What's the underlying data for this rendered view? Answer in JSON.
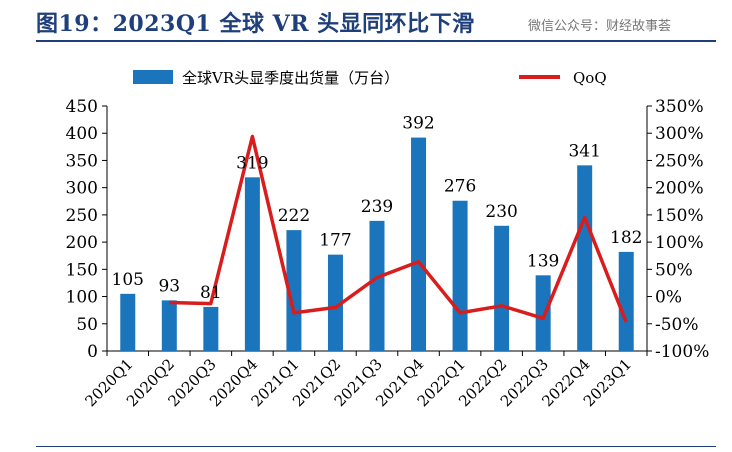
{
  "title": "图19：2023Q1 全球 VR 头显同环比下滑",
  "watermark": "微信公众号：财经故事荟",
  "colors": {
    "bar": "#1b75bc",
    "line": "#d91c1c",
    "title": "#1f3f7a"
  },
  "chart_data": {
    "type": "bar+line",
    "categories": [
      "2020Q1",
      "2020Q2",
      "2020Q3",
      "2020Q4",
      "2021Q1",
      "2021Q2",
      "2021Q3",
      "2021Q4",
      "2022Q1",
      "2022Q2",
      "2022Q3",
      "2022Q4",
      "2023Q1"
    ],
    "series": [
      {
        "name": "全球VR头显季度出货量（万台）",
        "type": "bar",
        "axis": "left",
        "values": [
          105,
          93,
          81,
          319,
          222,
          177,
          239,
          392,
          276,
          230,
          139,
          341,
          182
        ],
        "labels": [
          "105",
          "93",
          "81",
          "319",
          "222",
          "177",
          "239",
          "392",
          "276",
          "230",
          "139",
          "341",
          "182"
        ]
      },
      {
        "name": "QoQ",
        "type": "line",
        "axis": "right",
        "values": [
          null,
          -11,
          -13,
          294,
          -30,
          -20,
          35,
          64,
          -30,
          -17,
          -40,
          145,
          -47
        ]
      }
    ],
    "y_left": {
      "min": 0,
      "max": 450,
      "ticks": [
        "0",
        "50",
        "100",
        "150",
        "200",
        "250",
        "300",
        "350",
        "400",
        "450"
      ]
    },
    "y_right": {
      "min": -100,
      "max": 350,
      "ticks": [
        "-100%",
        "-50%",
        "0%",
        "50%",
        "100%",
        "150%",
        "200%",
        "250%",
        "300%",
        "350%"
      ]
    },
    "legend_position": "top",
    "grid": false
  }
}
